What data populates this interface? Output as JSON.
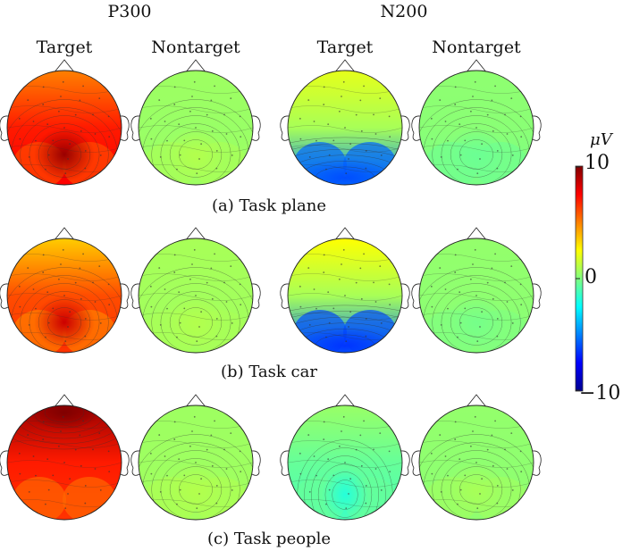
{
  "headers": {
    "p300": "P300",
    "n200": "N200",
    "target": "Target",
    "nontarget": "Nontarget"
  },
  "captions": [
    "(a) Task plane",
    "(b) Task car",
    "(c) Task people"
  ],
  "colorbar": {
    "unit": "μV",
    "max_label": "10",
    "mid_label": "0",
    "min_label": "−10",
    "range": [
      -10,
      10
    ]
  },
  "maps": [
    {
      "row": 0,
      "component": "P300",
      "condition": "Target",
      "front": 5.0,
      "center": 7.0,
      "back_center": 9.0,
      "back_lateral": 6.0,
      "hotspot_value": 9.5
    },
    {
      "row": 0,
      "component": "P300",
      "condition": "Nontarget",
      "front": 0.6,
      "center": 0.5,
      "back_center": 0.4,
      "back_lateral": 0.8,
      "hotspot_value": 1.0
    },
    {
      "row": 0,
      "component": "N200",
      "condition": "Target",
      "front": 2.0,
      "center": 0.8,
      "back_center": -4.5,
      "back_lateral": -5.5,
      "hotspot_value": -6.0
    },
    {
      "row": 0,
      "component": "N200",
      "condition": "Nontarget",
      "front": 0.3,
      "center": 0.2,
      "back_center": 0.0,
      "back_lateral": -0.3,
      "hotspot_value": -0.4
    },
    {
      "row": 1,
      "component": "P300",
      "condition": "Target",
      "front": 3.5,
      "center": 6.0,
      "back_center": 8.0,
      "back_lateral": 5.0,
      "hotspot_value": 8.5
    },
    {
      "row": 1,
      "component": "P300",
      "condition": "Nontarget",
      "front": 0.8,
      "center": 0.7,
      "back_center": 0.6,
      "back_lateral": 0.8,
      "hotspot_value": 1.0
    },
    {
      "row": 1,
      "component": "N200",
      "condition": "Target",
      "front": 2.5,
      "center": 0.8,
      "back_center": -4.5,
      "back_lateral": -6.0,
      "hotspot_value": -6.5
    },
    {
      "row": 1,
      "component": "N200",
      "condition": "Nontarget",
      "front": 0.4,
      "center": 0.3,
      "back_center": 0.2,
      "back_lateral": 0.0,
      "hotspot_value": -0.2
    },
    {
      "row": 2,
      "component": "P300",
      "condition": "Target",
      "front": 9.5,
      "center": 7.0,
      "back_center": 7.5,
      "back_lateral": 5.5,
      "hotspot_value": 10.0
    },
    {
      "row": 2,
      "component": "P300",
      "condition": "Nontarget",
      "front": 0.6,
      "center": 0.6,
      "back_center": 0.5,
      "back_lateral": 0.9,
      "hotspot_value": 1.0
    },
    {
      "row": 2,
      "component": "N200",
      "condition": "Target",
      "front": 0.5,
      "center": -0.5,
      "back_center": -1.5,
      "back_lateral": -0.5,
      "hotspot_value": -1.8
    },
    {
      "row": 2,
      "component": "N200",
      "condition": "Nontarget",
      "front": 0.4,
      "center": 0.3,
      "back_center": 0.0,
      "back_lateral": 0.6,
      "hotspot_value": 0.8
    }
  ]
}
